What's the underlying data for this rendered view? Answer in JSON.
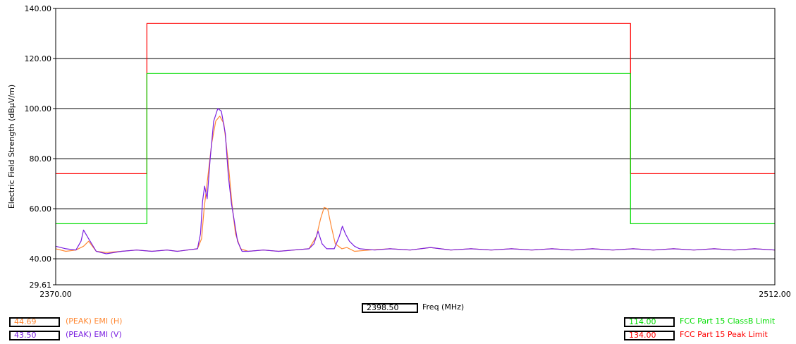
{
  "chart_data": {
    "type": "line",
    "ylabel": "Electric Field Strength (dBμV/m)",
    "xlabel": "Freq (MHz)",
    "xlim": [
      2370.0,
      2512.0
    ],
    "ylim": [
      29.61,
      140.0
    ],
    "x_tick_labels": [
      "2370.00",
      "2512.00"
    ],
    "y_ticks": [
      {
        "v": 140,
        "label": "140.00"
      },
      {
        "v": 120,
        "label": "120.00"
      },
      {
        "v": 100,
        "label": "100.00"
      },
      {
        "v": 80,
        "label": "80.00"
      },
      {
        "v": 60,
        "label": "60.00"
      },
      {
        "v": 40,
        "label": "40.00"
      },
      {
        "v": 29.61,
        "label": "29.61"
      }
    ],
    "grid": true,
    "cursor_freq": "2398.50",
    "series": [
      {
        "name": "FCC Part 15 Peak Limit",
        "color": "#ff0000",
        "type": "step",
        "x": [
          2370.0,
          2388.0,
          2388.0,
          2483.5,
          2483.5,
          2512.0
        ],
        "y": [
          74,
          74,
          134,
          134,
          74,
          74
        ]
      },
      {
        "name": "FCC Part 15 ClassB Limit",
        "color": "#00dd00",
        "type": "step",
        "x": [
          2370.0,
          2388.0,
          2388.0,
          2483.5,
          2483.5,
          2512.0
        ],
        "y": [
          54,
          54,
          114,
          114,
          54,
          54
        ]
      },
      {
        "name": "(PEAK) EMI (H)",
        "color": "#ff8833",
        "points": [
          [
            2370,
            44
          ],
          [
            2372,
            43
          ],
          [
            2374,
            43.5
          ],
          [
            2375.5,
            45
          ],
          [
            2376.5,
            47
          ],
          [
            2378,
            43
          ],
          [
            2380,
            42.5
          ],
          [
            2383,
            43
          ],
          [
            2386,
            43.5
          ],
          [
            2389,
            43
          ],
          [
            2392,
            43.5
          ],
          [
            2394,
            43
          ],
          [
            2396,
            43.5
          ],
          [
            2398,
            44
          ],
          [
            2398.8,
            48
          ],
          [
            2399.3,
            60
          ],
          [
            2400,
            72
          ],
          [
            2400.8,
            86
          ],
          [
            2401.6,
            95
          ],
          [
            2402.4,
            97
          ],
          [
            2403.2,
            94
          ],
          [
            2404,
            80
          ],
          [
            2404.8,
            62
          ],
          [
            2405.5,
            50
          ],
          [
            2406.5,
            44
          ],
          [
            2408,
            43
          ],
          [
            2411,
            43.5
          ],
          [
            2414,
            43
          ],
          [
            2417,
            43.5
          ],
          [
            2420,
            44
          ],
          [
            2421.5,
            49
          ],
          [
            2422.3,
            56
          ],
          [
            2423,
            60.5
          ],
          [
            2423.7,
            60
          ],
          [
            2424.4,
            53
          ],
          [
            2425.2,
            46
          ],
          [
            2426.5,
            44
          ],
          [
            2427.5,
            44.5
          ],
          [
            2429,
            43
          ],
          [
            2432,
            43.5
          ],
          [
            2436,
            44
          ],
          [
            2440,
            43.5
          ],
          [
            2444,
            44.5
          ],
          [
            2448,
            43.5
          ],
          [
            2452,
            44
          ],
          [
            2456,
            43.5
          ],
          [
            2460,
            44
          ],
          [
            2464,
            43.5
          ],
          [
            2468,
            44
          ],
          [
            2472,
            43.5
          ],
          [
            2476,
            44
          ],
          [
            2480,
            43.5
          ],
          [
            2484,
            44
          ],
          [
            2488,
            43.5
          ],
          [
            2492,
            44
          ],
          [
            2496,
            43.5
          ],
          [
            2500,
            44
          ],
          [
            2504,
            43.5
          ],
          [
            2508,
            44
          ],
          [
            2512,
            43.5
          ]
        ]
      },
      {
        "name": "(PEAK) EMI (V)",
        "color": "#7a1fe0",
        "points": [
          [
            2370,
            45
          ],
          [
            2372,
            44
          ],
          [
            2374,
            43.5
          ],
          [
            2375,
            47
          ],
          [
            2375.5,
            51.5
          ],
          [
            2376.5,
            48
          ],
          [
            2378,
            43
          ],
          [
            2380,
            42
          ],
          [
            2383,
            43
          ],
          [
            2386,
            43.5
          ],
          [
            2389,
            43
          ],
          [
            2392,
            43.5
          ],
          [
            2394,
            43
          ],
          [
            2396,
            43.5
          ],
          [
            2398,
            44
          ],
          [
            2398.6,
            50
          ],
          [
            2399,
            63
          ],
          [
            2399.4,
            69
          ],
          [
            2399.9,
            64
          ],
          [
            2400.5,
            80
          ],
          [
            2401.2,
            95
          ],
          [
            2402,
            100
          ],
          [
            2402.7,
            99
          ],
          [
            2403.5,
            90
          ],
          [
            2404.1,
            73
          ],
          [
            2404.7,
            62
          ],
          [
            2405.2,
            56
          ],
          [
            2405.9,
            47
          ],
          [
            2406.8,
            43
          ],
          [
            2408,
            43
          ],
          [
            2411,
            43.5
          ],
          [
            2414,
            43
          ],
          [
            2417,
            43.5
          ],
          [
            2420,
            44
          ],
          [
            2421,
            46
          ],
          [
            2421.8,
            51
          ],
          [
            2422.6,
            46
          ],
          [
            2423.5,
            44
          ],
          [
            2425,
            44
          ],
          [
            2426,
            49
          ],
          [
            2426.6,
            53
          ],
          [
            2427.2,
            50
          ],
          [
            2428,
            47
          ],
          [
            2429,
            45
          ],
          [
            2430,
            44
          ],
          [
            2433,
            43.5
          ],
          [
            2436,
            44
          ],
          [
            2440,
            43.5
          ],
          [
            2444,
            44.5
          ],
          [
            2448,
            43.5
          ],
          [
            2452,
            44
          ],
          [
            2456,
            43.5
          ],
          [
            2460,
            44
          ],
          [
            2464,
            43.5
          ],
          [
            2468,
            44
          ],
          [
            2472,
            43.5
          ],
          [
            2476,
            44
          ],
          [
            2480,
            43.5
          ],
          [
            2484,
            44
          ],
          [
            2488,
            43.5
          ],
          [
            2492,
            44
          ],
          [
            2496,
            43.5
          ],
          [
            2500,
            44
          ],
          [
            2504,
            43.5
          ],
          [
            2508,
            44
          ],
          [
            2512,
            43.5
          ]
        ]
      }
    ]
  },
  "legend": {
    "left": [
      {
        "value": "44.69",
        "name": "(PEAK) EMI (H)",
        "color": "#ff8833"
      },
      {
        "value": "43.50",
        "name": "(PEAK) EMI (V)",
        "color": "#7a1fe0"
      }
    ],
    "right": [
      {
        "value": "114.00",
        "name": "FCC Part 15 ClassB Limit",
        "color": "#00dd00"
      },
      {
        "value": "134.00",
        "name": "FCC Part 15 Peak Limit",
        "color": "#ff0000"
      }
    ]
  }
}
